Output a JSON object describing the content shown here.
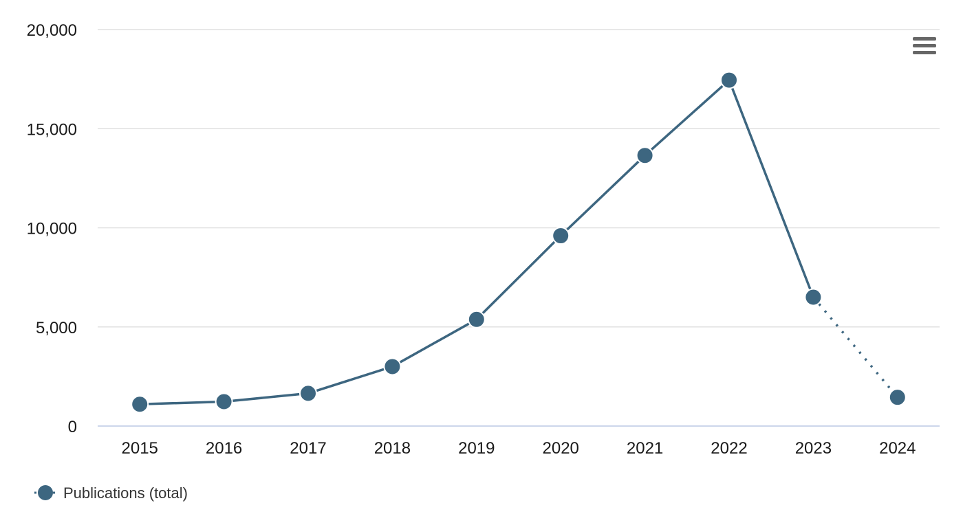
{
  "chart_data": {
    "type": "line",
    "title": "",
    "xlabel": "",
    "ylabel": "",
    "categories": [
      "2015",
      "2016",
      "2017",
      "2018",
      "2019",
      "2020",
      "2021",
      "2022",
      "2023",
      "2024"
    ],
    "series": [
      {
        "name": "Publications (total)",
        "values": [
          1100,
          1230,
          1650,
          3000,
          5380,
          9600,
          13650,
          17450,
          6500,
          1450
        ],
        "color": "#3d6680",
        "dashed_from_index": 8
      }
    ],
    "ylim": [
      0,
      20000
    ],
    "yticks": [
      {
        "value": 0,
        "label": "0"
      },
      {
        "value": 5000,
        "label": "5,000"
      },
      {
        "value": 10000,
        "label": "10,000"
      },
      {
        "value": 15000,
        "label": "15,000"
      },
      {
        "value": 20000,
        "label": "20,000"
      }
    ],
    "grid": true,
    "legend": {
      "placement": "bottom-left",
      "label": "Publications (total)"
    }
  },
  "menu": {
    "icon": "hamburger-menu-icon"
  }
}
